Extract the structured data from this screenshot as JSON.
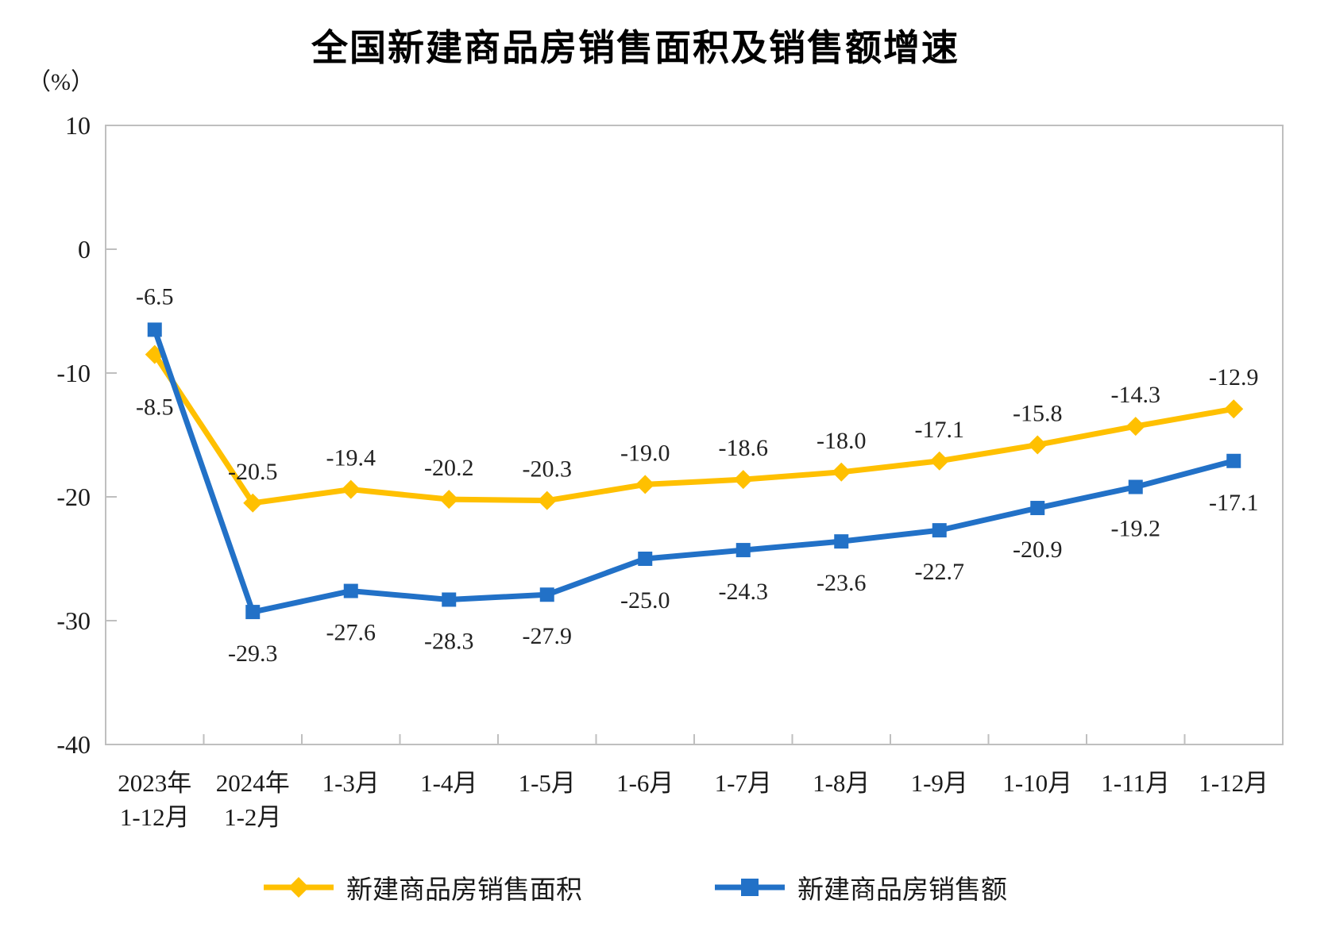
{
  "title": "全国新建商品房销售面积及销售额增速",
  "y_axis_unit": "（%）",
  "chart_data": {
    "type": "line",
    "title": "全国新建商品房销售面积及销售额增速",
    "ylabel": "（%）",
    "ylim": [
      -40,
      10
    ],
    "y_ticks": [
      10,
      0,
      -10,
      -20,
      -30,
      -40
    ],
    "grid": false,
    "legend_position": "bottom",
    "categories": [
      [
        "2023年",
        "1-12月"
      ],
      [
        "2024年",
        "1-2月"
      ],
      [
        "1-3月"
      ],
      [
        "1-4月"
      ],
      [
        "1-5月"
      ],
      [
        "1-6月"
      ],
      [
        "1-7月"
      ],
      [
        "1-8月"
      ],
      [
        "1-9月"
      ],
      [
        "1-10月"
      ],
      [
        "1-11月"
      ],
      [
        "1-12月"
      ]
    ],
    "series": [
      {
        "name": "新建商品房销售面积",
        "color": "#FFC000",
        "marker": "diamond",
        "values": [
          -8.5,
          -20.5,
          -19.4,
          -20.2,
          -20.3,
          -19.0,
          -18.6,
          -18.0,
          -17.1,
          -15.8,
          -14.3,
          -12.9
        ],
        "label_position": "above",
        "label_overrides": {
          "0": {
            "position": "below",
            "dy": 14
          }
        }
      },
      {
        "name": "新建商品房销售额",
        "color": "#2271C7",
        "marker": "square",
        "values": [
          -6.5,
          -29.3,
          -27.6,
          -28.3,
          -27.9,
          -25.0,
          -24.3,
          -23.6,
          -22.7,
          -20.9,
          -19.2,
          -17.1
        ],
        "label_position": "below",
        "label_overrides": {
          "0": {
            "position": "above",
            "dy": -2
          }
        }
      }
    ]
  },
  "legend": {
    "items": [
      {
        "label": "新建商品房销售面积",
        "marker": "diamond",
        "color": "#FFC000"
      },
      {
        "label": "新建商品房销售额",
        "marker": "square",
        "color": "#2271C7"
      }
    ]
  },
  "colors": {
    "background": "#FFFFFF",
    "axis": "#BFBFBF",
    "tick_text": "#1a1a1a",
    "data_label_text": "#222222",
    "series_area": "#FFC000",
    "series_amount": "#2271C7"
  }
}
